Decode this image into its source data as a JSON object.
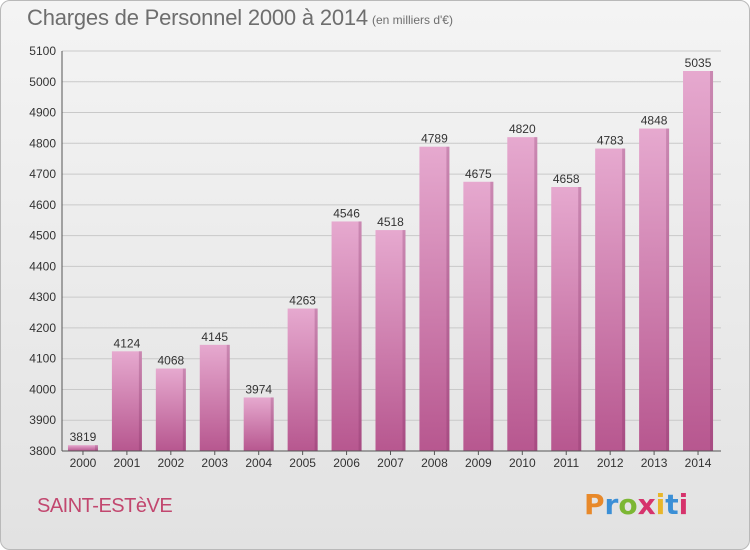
{
  "title": "Charges de Personnel 2000 à 2014",
  "subtitle": "(en milliers d'€)",
  "place_name": "SAINT-ESTèVE",
  "logo": {
    "letters": [
      "P",
      "r",
      "o",
      "x",
      "i",
      "t",
      "i"
    ],
    "colors": [
      "#e8892a",
      "#3b8fd6",
      "#7cb733",
      "#d6336c",
      "#e8b62a",
      "#3b8fd6",
      "#d6336c"
    ]
  },
  "colors": {
    "bar_top": "#e6a9cf",
    "bar_bottom": "#b7578f",
    "grid": "#c9c9c9",
    "title_text": "#6e6e6e",
    "place_text": "#c2476f"
  },
  "chart_data": {
    "type": "bar",
    "title": "Charges de Personnel 2000 à 2014",
    "subtitle": "(en milliers d'€)",
    "categories": [
      "2000",
      "2001",
      "2002",
      "2003",
      "2004",
      "2005",
      "2006",
      "2007",
      "2008",
      "2009",
      "2010",
      "2011",
      "2012",
      "2013",
      "2014"
    ],
    "values": [
      3819,
      4124,
      4068,
      4145,
      3974,
      4263,
      4546,
      4518,
      4789,
      4675,
      4820,
      4658,
      4783,
      4848,
      5035
    ],
    "ylim": [
      3800,
      5100
    ],
    "yticks": [
      3800,
      3900,
      4000,
      4100,
      4200,
      4300,
      4400,
      4500,
      4600,
      4700,
      4800,
      4900,
      5000,
      5100
    ],
    "xlabel": "",
    "ylabel": "",
    "grid": true,
    "legend": "none"
  }
}
